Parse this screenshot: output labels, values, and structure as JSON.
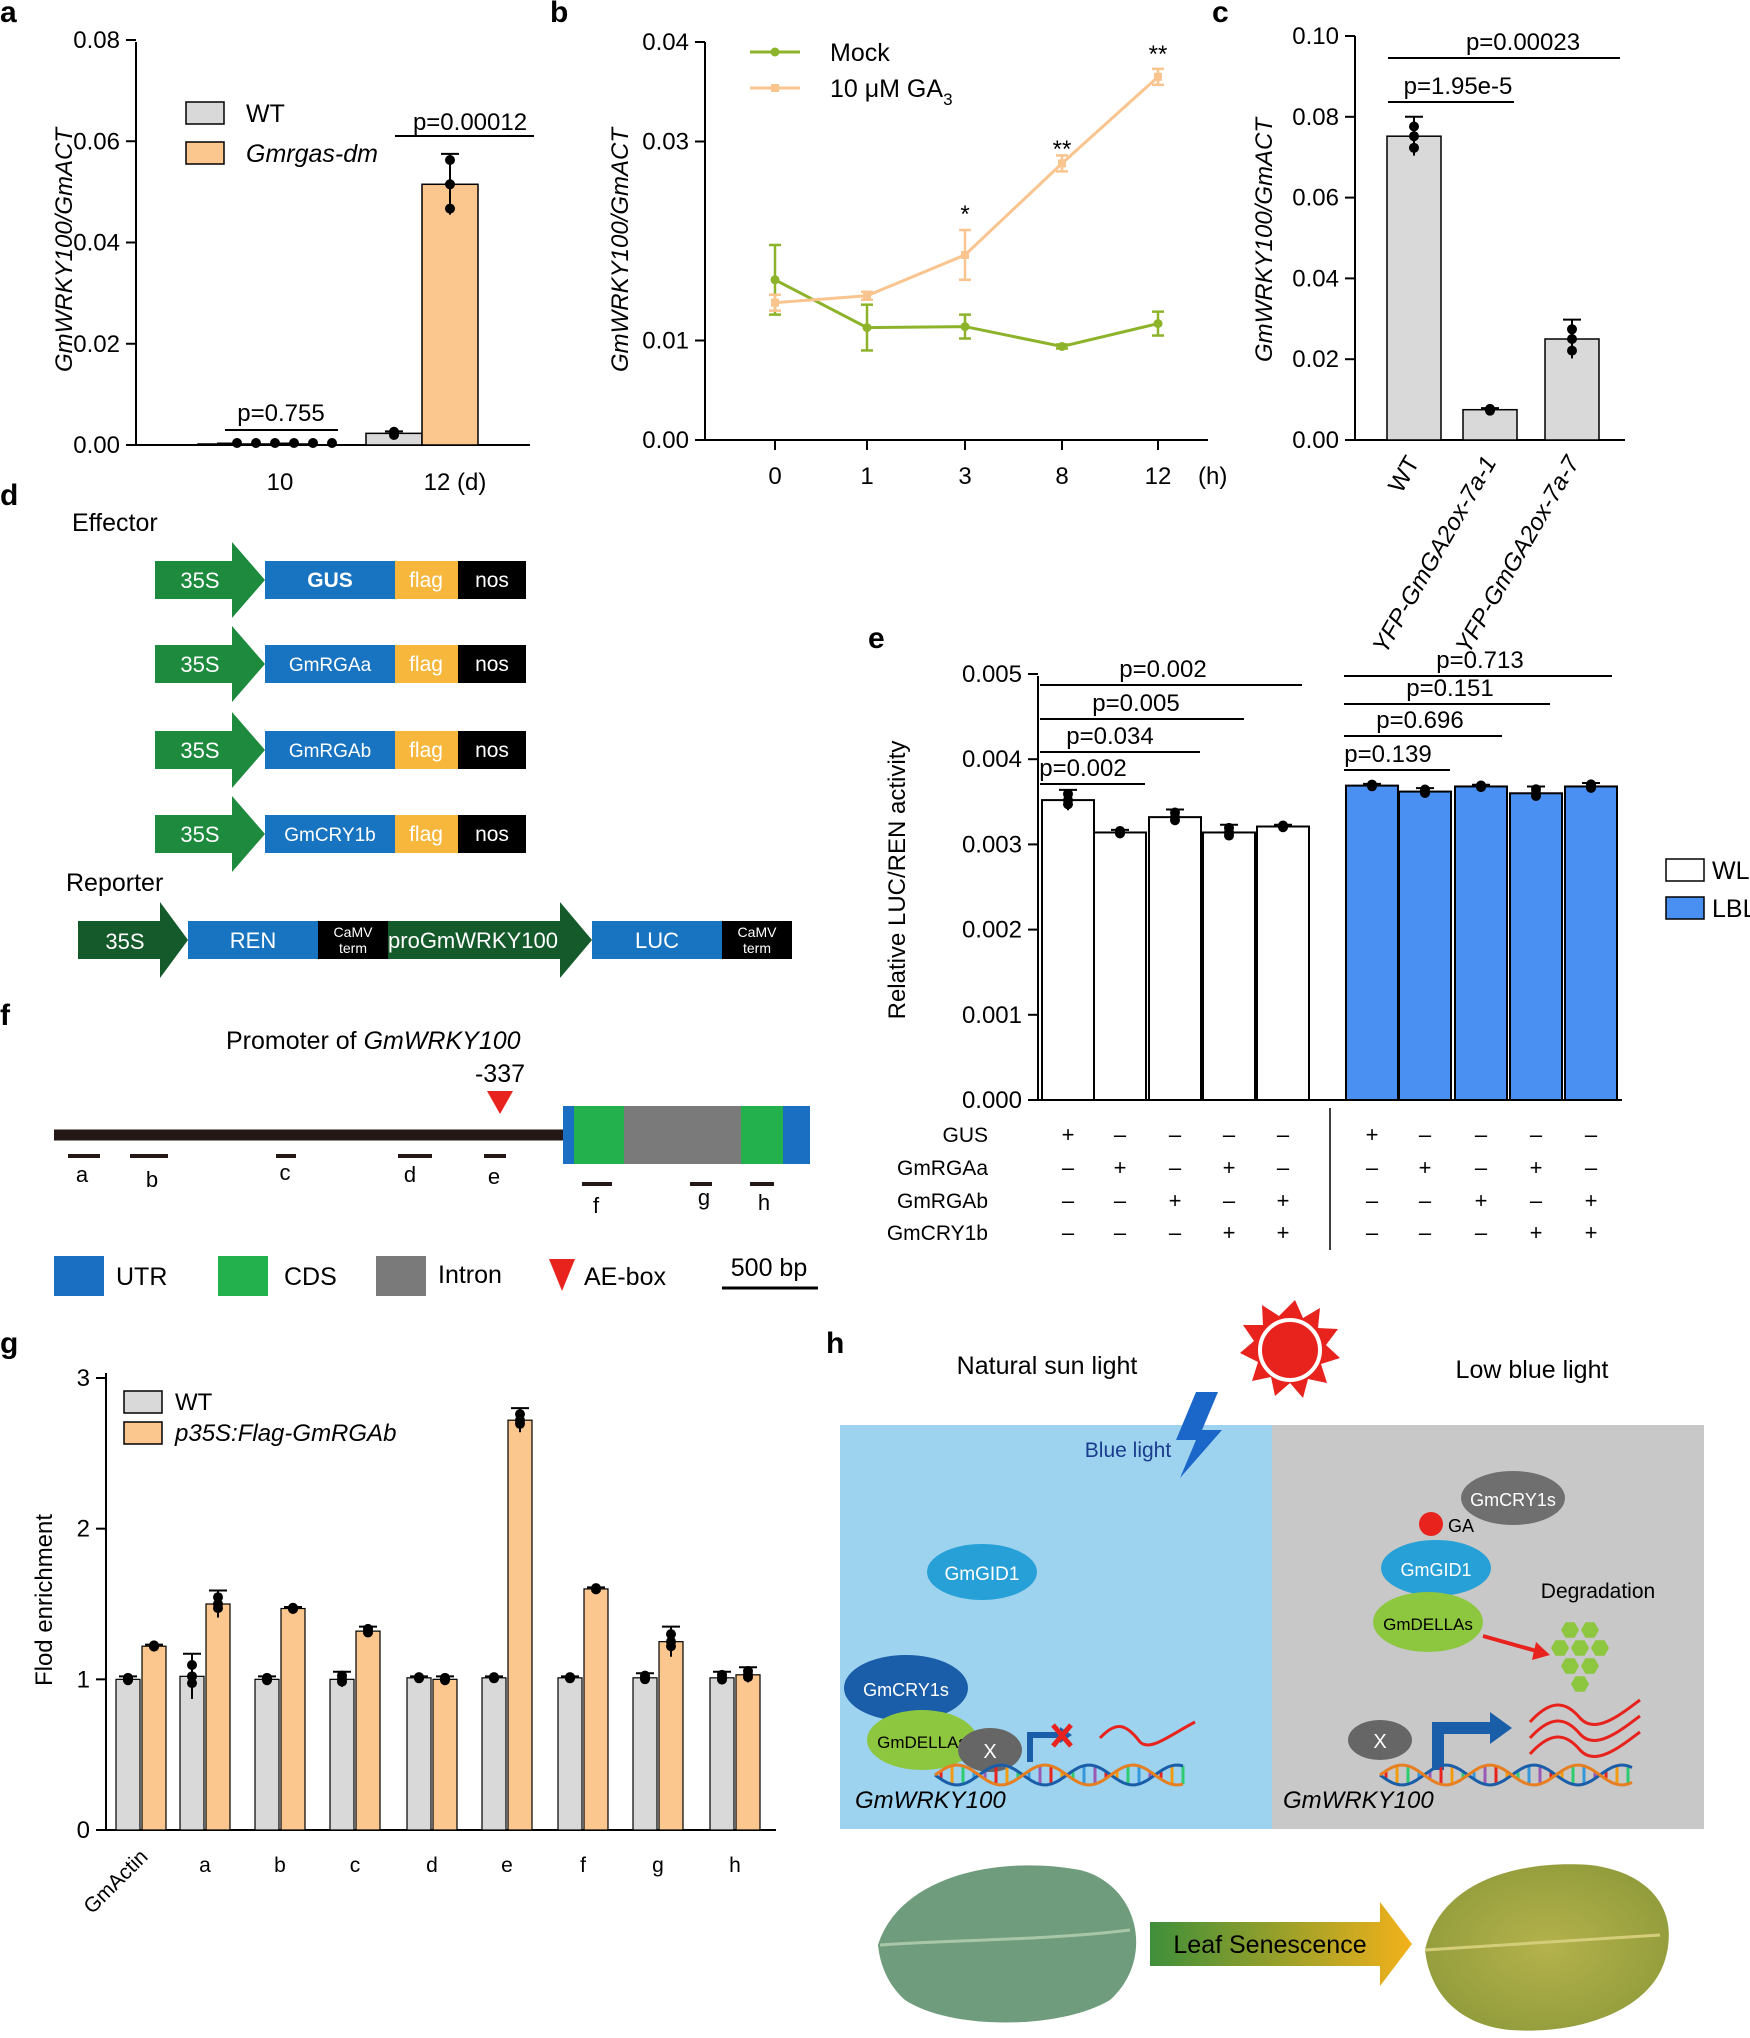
{
  "panels": {
    "a": {
      "label": "a",
      "ylabel": "GmWRKY100/GmACT",
      "yticks": [
        "0.00",
        "0.02",
        "0.04",
        "0.06",
        "0.08"
      ],
      "xticks": [
        "10",
        "12 (d)"
      ],
      "legend": [
        "WT",
        "Gmrgas-dm"
      ],
      "pvalues": [
        "p=0.755",
        "p=0.00012"
      ],
      "colors": {
        "wt": "#d9d9d9",
        "mut": "#fbc78f"
      }
    },
    "b": {
      "label": "b",
      "ylabel": "GmWRKY100/GmACT",
      "yticks": [
        "0.00",
        "0.01",
        "0.03",
        "0.04"
      ],
      "xticks": [
        "0",
        "1",
        "3",
        "8",
        "12"
      ],
      "xunit": "(h)",
      "legend": [
        "Mock",
        "10 μM GA",
        "3"
      ],
      "sig": [
        "*",
        "**",
        "**"
      ],
      "colors": {
        "mock": "#8db32a",
        "ga": "#f9c48e"
      }
    },
    "c": {
      "label": "c",
      "ylabel": "GmWRKY100/GmACT",
      "yticks": [
        "0.00",
        "0.02",
        "0.04",
        "0.06",
        "0.08",
        "0.10"
      ],
      "xticks": [
        "WT",
        "YFP-GmGA2ox-7a-1",
        "YFP-GmGA2ox-7a-7"
      ],
      "pvalues": [
        "p=1.95e-5",
        "p=0.00023"
      ]
    },
    "d": {
      "label": "d",
      "effector": "Effector",
      "reporter": "Reporter",
      "promoter": "35S",
      "genes": [
        "GUS",
        "GmRGAa",
        "GmRGAb",
        "GmCRY1b"
      ],
      "flag": "flag",
      "nos": "nos",
      "reporter_parts": [
        "REN",
        "CaMV",
        "term",
        "proGmWRKY100",
        "LUC"
      ],
      "colors": {
        "green": "#1d8a3d",
        "blue": "#1874c0",
        "flag": "#f6b73c",
        "dark": "#155a2a"
      }
    },
    "e": {
      "label": "e",
      "ylabel": "Relative LUC/REN activity",
      "yticks": [
        "0.000",
        "0.001",
        "0.002",
        "0.003",
        "0.004",
        "0.005"
      ],
      "pvalues_wl": [
        "p=0.002",
        "p=0.034",
        "p=0.005",
        "p=0.002"
      ],
      "pvalues_lbl": [
        "p=0.139",
        "p=0.696",
        "p=0.151",
        "p=0.713"
      ],
      "legend": [
        "WL",
        "LBL"
      ],
      "row_labels": [
        "GUS",
        "GmRGAa",
        "GmRGAb",
        "GmCRY1b"
      ],
      "plus": "+",
      "minus": "–",
      "colors": {
        "lbl": "#4a90f2"
      }
    },
    "f": {
      "label": "f",
      "title_prefix": "Promoter of ",
      "title_gene": "GmWRKY100",
      "position": "-337",
      "regions": [
        "a",
        "b",
        "c",
        "d",
        "e",
        "f",
        "g",
        "h"
      ],
      "legend": [
        "UTR",
        "CDS",
        "Intron",
        "AE-box"
      ],
      "scale": "500 bp",
      "colors": {
        "utr": "#1a6fc2",
        "cds": "#22b14c",
        "intron": "#7a7a7a",
        "aebox": "#e8231e"
      }
    },
    "g": {
      "label": "g",
      "ylabel": "Flod enrichment",
      "yticks": [
        "0",
        "1",
        "2",
        "3"
      ],
      "xticks": [
        "GmActin",
        "a",
        "b",
        "c",
        "d",
        "e",
        "f",
        "g",
        "h"
      ],
      "legend": [
        "WT",
        "p35S:Flag-GmRGAb"
      ]
    },
    "h": {
      "label": "h",
      "left_title": "Natural sun light",
      "right_title": "Low blue light",
      "blue_light": "Blue light",
      "proteins": [
        "GmGID1",
        "GmCRY1s",
        "GmDELLAs",
        "X",
        "GA",
        "GmCRY1s",
        "GmGID1",
        "GmDELLAs",
        "X"
      ],
      "degradation": "Degradation",
      "gene": "GmWRKY100",
      "senescence": "Leaf Senescence",
      "colors": {
        "left_bg": "#9dd3ee",
        "right_bg": "#c8c8c8",
        "sun": "#e8231e"
      }
    }
  },
  "chart_data": [
    {
      "panel": "a",
      "type": "bar",
      "categories": [
        "10",
        "12 (d)"
      ],
      "series": [
        {
          "name": "WT",
          "values": [
            0.0002,
            0.0023
          ],
          "errors": [
            0.0001,
            0.0004
          ]
        },
        {
          "name": "Gmrgas-dm",
          "values": [
            0.0002,
            0.0515
          ],
          "errors": [
            0.0001,
            0.006
          ]
        }
      ],
      "ylabel": "GmWRKY100/GmACT",
      "ylim": [
        0,
        0.08
      ]
    },
    {
      "panel": "b",
      "type": "line",
      "x": [
        "0",
        "1",
        "3",
        "8",
        "12"
      ],
      "series": [
        {
          "name": "Mock",
          "values": [
            0.0161,
            0.0113,
            0.0114,
            0.0094,
            0.0117
          ],
          "errors": [
            0.0035,
            0.0023,
            0.0012,
            0.0002,
            0.0012
          ]
        },
        {
          "name": "10 μM GA3",
          "values": [
            0.0138,
            0.0145,
            0.0186,
            0.0278,
            0.0365
          ],
          "errors": [
            0.0008,
            0.0004,
            0.0025,
            0.0008,
            0.0008
          ]
        }
      ],
      "ylabel": "GmWRKY100/GmACT",
      "ylim": [
        0,
        0.04
      ]
    },
    {
      "panel": "c",
      "type": "bar",
      "categories": [
        "WT",
        "YFP-GmGA2ox-7a-1",
        "YFP-GmGA2ox-7a-7"
      ],
      "values": [
        0.0752,
        0.0075,
        0.025
      ],
      "errors": [
        0.0048,
        0.0004,
        0.0048
      ],
      "ylabel": "GmWRKY100/GmACT",
      "ylim": [
        0,
        0.1
      ]
    },
    {
      "panel": "e",
      "type": "bar",
      "categories": [
        "GUS",
        "GmRGAa",
        "GmRGAb",
        "GmRGAa+GmCRY1b",
        "GmRGAb+GmCRY1b"
      ],
      "series": [
        {
          "name": "WL",
          "values": [
            0.00352,
            0.00314,
            0.00332,
            0.00314,
            0.00321
          ],
          "errors": [
            0.00012,
            3e-05,
            9e-05,
            9e-05,
            2e-05
          ]
        },
        {
          "name": "LBL",
          "values": [
            0.00369,
            0.00362,
            0.00368,
            0.0036,
            0.00368
          ],
          "errors": [
            2e-05,
            4e-05,
            2e-05,
            8e-05,
            4e-05
          ]
        }
      ],
      "ylabel": "Relative LUC/REN activity",
      "ylim": [
        0,
        0.005
      ]
    },
    {
      "panel": "g",
      "type": "bar",
      "categories": [
        "GmActin",
        "a",
        "b",
        "c",
        "d",
        "e",
        "f",
        "g",
        "h"
      ],
      "series": [
        {
          "name": "WT",
          "values": [
            1.0,
            1.02,
            1.0,
            1.0,
            1.01,
            1.01,
            1.01,
            1.01,
            1.01
          ],
          "errors": [
            0.02,
            0.15,
            0.02,
            0.05,
            0.01,
            0.01,
            0.01,
            0.03,
            0.04
          ]
        },
        {
          "name": "p35S:Flag-GmRGAb",
          "values": [
            1.22,
            1.5,
            1.47,
            1.32,
            1.0,
            2.72,
            1.6,
            1.25,
            1.03
          ],
          "errors": [
            0.01,
            0.09,
            0.01,
            0.03,
            0.02,
            0.08,
            0.01,
            0.1,
            0.05
          ]
        }
      ],
      "ylabel": "Flod enrichment",
      "ylim": [
        0,
        3
      ]
    }
  ]
}
